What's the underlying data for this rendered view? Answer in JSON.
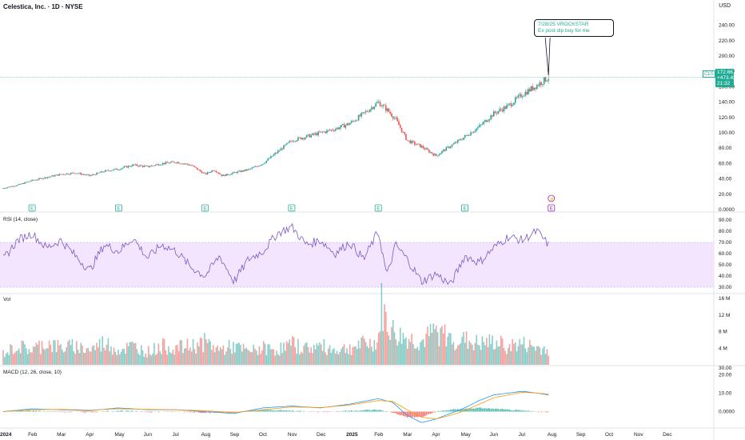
{
  "header": {
    "title": "Celestica, Inc. · 1D · NYSE",
    "currency": "USD"
  },
  "annotation": {
    "line1": "7/28/25 VROCKSTAR",
    "line2": "Ex post dip buy for me"
  },
  "price_tag": {
    "symbol": "CLS",
    "price": "172.66",
    "change": "+473.43%",
    "countdown": "21:32"
  },
  "colors": {
    "up": "#26a69a",
    "down": "#ef5350",
    "rsi": "#7e57c2",
    "rsi_band": "#f3e5fd",
    "macd": "#2196f3",
    "signal": "#ff9800",
    "earnings": "#22ab94",
    "upcoming_earnings": "#9c27b0"
  },
  "earnings_markers": {
    "label": "E",
    "dividend_label": "⚡"
  },
  "chart_data": [
    {
      "type": "candlestick",
      "title": "Celestica, Inc. · 1D · NYSE",
      "ylim": [
        0,
        250
      ],
      "y_ticks": [
        "240.00",
        "220.00",
        "200.00",
        "180.00",
        "160.00",
        "140.00",
        "120.00",
        "100.00",
        "80.00",
        "60.00",
        "40.00",
        "20.00",
        "0.0000"
      ],
      "x_ticks": [
        "2024",
        "Feb",
        "Mar",
        "Apr",
        "May",
        "Jun",
        "Jul",
        "Aug",
        "Sep",
        "Oct",
        "Nov",
        "Dec",
        "2025",
        "Feb",
        "Mar",
        "Apr",
        "May",
        "Jun",
        "Jul",
        "Aug",
        "Sep",
        "Oct",
        "Nov",
        "Dec"
      ],
      "x_tick_months": [
        0,
        1,
        2,
        3,
        4,
        5,
        6,
        7,
        8,
        9,
        10,
        11,
        12,
        13,
        14,
        15,
        16,
        17,
        18,
        19,
        20,
        21,
        22,
        23
      ],
      "month_index_range": [
        0,
        24
      ],
      "close_series": {
        "months": [
          0,
          0.5,
          1,
          1.5,
          2,
          2.5,
          3,
          3.5,
          4,
          4.5,
          5,
          5.5,
          6,
          6.5,
          7,
          7.3,
          7.6,
          8,
          8.5,
          9,
          9.5,
          10,
          10.5,
          11,
          11.5,
          12,
          12.5,
          13,
          13.3,
          13.6,
          14,
          14.5,
          15,
          15.3,
          15.6,
          16,
          16.5,
          17,
          17.5,
          18,
          18.5,
          18.9
        ],
        "values": [
          28,
          32,
          38,
          42,
          46,
          48,
          44,
          50,
          53,
          58,
          56,
          60,
          62,
          58,
          46,
          52,
          44,
          48,
          52,
          60,
          75,
          90,
          95,
          100,
          105,
          112,
          125,
          140,
          130,
          118,
          90,
          82,
          70,
          78,
          85,
          95,
          108,
          125,
          135,
          150,
          162,
          172
        ]
      },
      "current_price": 172.66,
      "earnings_months": [
        1,
        4,
        7,
        10,
        13,
        16,
        19
      ]
    },
    {
      "type": "line",
      "title": "RSI (14, close)",
      "ylim": [
        25,
        95
      ],
      "y_ticks": [
        "90.00",
        "80.00",
        "70.00",
        "60.00",
        "50.00",
        "40.00",
        "30.00"
      ],
      "band": [
        30,
        70
      ],
      "months": [
        0,
        0.5,
        1,
        1.5,
        2,
        2.5,
        3,
        3.5,
        4,
        4.5,
        5,
        5.5,
        6,
        6.5,
        7,
        7.5,
        8,
        8.5,
        9,
        9.5,
        10,
        10.5,
        11,
        11.5,
        12,
        12.5,
        13,
        13.3,
        13.6,
        14,
        14.5,
        15,
        15.5,
        16,
        16.5,
        17,
        17.5,
        18,
        18.5,
        18.9
      ],
      "values": [
        55,
        72,
        78,
        65,
        72,
        58,
        45,
        68,
        62,
        74,
        56,
        68,
        62,
        48,
        40,
        58,
        35,
        55,
        62,
        78,
        84,
        68,
        72,
        60,
        70,
        55,
        80,
        40,
        68,
        55,
        35,
        42,
        32,
        58,
        52,
        65,
        75,
        72,
        80,
        68
      ]
    },
    {
      "type": "bar",
      "title": "Vol",
      "ylim": [
        0,
        17
      ],
      "y_ticks": [
        "16 M",
        "12 M",
        "8 M",
        "4 M"
      ],
      "unit": "M",
      "months": [
        0,
        0.5,
        1,
        1.5,
        2,
        2.5,
        3,
        3.5,
        4,
        4.5,
        5,
        5.5,
        6,
        6.5,
        7,
        7.5,
        8,
        8.5,
        9,
        9.5,
        10,
        10.5,
        11,
        11.5,
        12,
        12.5,
        13,
        13.1,
        13.3,
        13.6,
        14,
        14.5,
        15,
        15.5,
        16,
        16.5,
        17,
        17.5,
        18,
        18.5,
        18.9
      ],
      "values": [
        3,
        5,
        4,
        6,
        4.5,
        5,
        4,
        6,
        4,
        5,
        3.5,
        5,
        4.5,
        5,
        6,
        4,
        5,
        3.5,
        4.5,
        4,
        5.5,
        4.5,
        5,
        4,
        4.5,
        5.5,
        6,
        16,
        11,
        8,
        7,
        6,
        9,
        7,
        6.5,
        5.5,
        6,
        5,
        5.5,
        4.5,
        4.2
      ]
    },
    {
      "type": "line",
      "title": "MACD (12, 26, close, 10)",
      "ylim": [
        -8,
        24
      ],
      "y_ticks": [
        "20.00",
        "10.00",
        "0.0000"
      ],
      "months": [
        0,
        1,
        2,
        3,
        4,
        5,
        6,
        7,
        8,
        9,
        10,
        11,
        12,
        13,
        13.5,
        14,
        14.5,
        15,
        15.5,
        16,
        16.5,
        17,
        17.5,
        18,
        18.5,
        18.9
      ],
      "series": [
        {
          "name": "MACD",
          "values": [
            0,
            1.5,
            1,
            0.5,
            2,
            1,
            1,
            0,
            -1,
            2,
            3,
            2,
            4,
            7,
            5,
            -2,
            -6,
            -4,
            -1,
            2,
            6,
            9,
            10,
            11,
            10,
            9
          ]
        },
        {
          "name": "Signal",
          "values": [
            0,
            1,
            1.2,
            0.8,
            1.5,
            1.2,
            1,
            0.5,
            -0.5,
            1,
            2.5,
            2.2,
            3.5,
            6,
            5.5,
            1,
            -3,
            -4,
            -2,
            0.5,
            4,
            7.5,
            9,
            10.5,
            10,
            9.5
          ]
        }
      ],
      "histogram": [
        0,
        0.5,
        -0.2,
        -0.3,
        0.5,
        -0.2,
        0,
        -0.5,
        -0.5,
        1,
        0.5,
        -0.2,
        0.5,
        1,
        -0.5,
        -3,
        -3,
        0,
        1,
        1.5,
        2,
        1.5,
        1,
        0.5,
        0,
        -0.5
      ]
    }
  ]
}
